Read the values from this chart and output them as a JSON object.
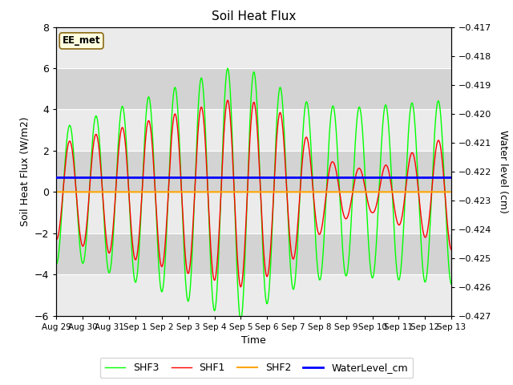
{
  "title": "Soil Heat Flux",
  "ylabel_left": "Soil Heat Flux (W/m2)",
  "ylabel_right": "Water level (cm)",
  "xlabel": "Time",
  "ylim_left": [
    -6,
    8
  ],
  "ylim_right": [
    -0.427,
    -0.417
  ],
  "yticks_left": [
    -6,
    -4,
    -2,
    0,
    2,
    4,
    6,
    8
  ],
  "yticks_right": [
    -0.427,
    -0.426,
    -0.425,
    -0.424,
    -0.423,
    -0.422,
    -0.421,
    -0.42,
    -0.419,
    -0.418,
    -0.417
  ],
  "plot_bg_color": "#e8e8e8",
  "band_color_dark": "#d3d3d3",
  "band_color_light": "#ebebeb",
  "grid_color": "white",
  "shf1_color": "red",
  "shf2_color": "orange",
  "shf3_color": "lime",
  "wl_color": "blue",
  "legend_items": [
    "SHF1",
    "SHF2",
    "SHF3",
    "WaterLevel_cm"
  ],
  "station_label": "EE_met",
  "x_tick_labels": [
    "Aug 29",
    "Aug 30",
    "Aug 31",
    "Sep 1",
    "Sep 2",
    "Sep 3",
    "Sep 4",
    "Sep 5",
    "Sep 6",
    "Sep 7",
    "Sep 8",
    "Sep 9",
    "Sep 10",
    "Sep 11",
    "Sep 12",
    "Sep 13"
  ],
  "n_days": 15,
  "shf2_value": 0.0,
  "wl_value": 0.3,
  "figsize": [
    6.4,
    4.8
  ],
  "dpi": 100
}
